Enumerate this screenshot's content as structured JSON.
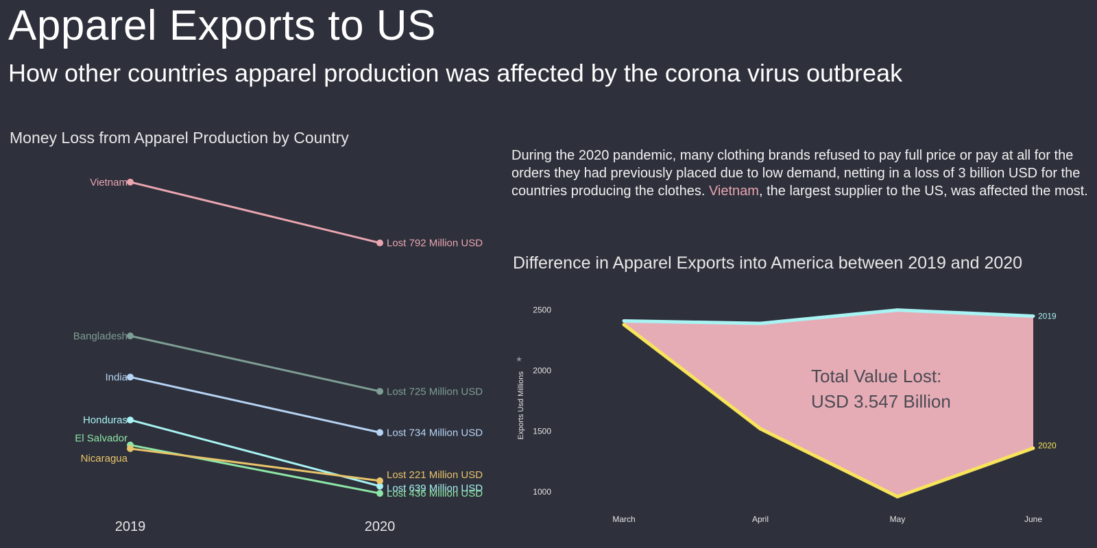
{
  "header": {
    "title": "Apparel Exports to US",
    "subtitle": "How other countries apparel production was affected by the corona virus outbreak"
  },
  "description": {
    "before": "During the 2020 pandemic, many clothing brands refused to pay full price or pay at all for the orders they had previously placed due to low demand, netting in a loss of 3 billion USD for the countries producing the clothes. ",
    "highlight": "Vietnam",
    "after": ", the largest supplier to the US, was affected the most."
  },
  "chart_data": [
    {
      "type": "line",
      "title": "Money Loss from Apparel Production by Country",
      "x": [
        "2019",
        "2020"
      ],
      "series": [
        {
          "name": "Vietnam",
          "values": [
            3.62,
            3.28
          ],
          "end_label": "Lost 792 Million USD",
          "color": "#e9a6b0"
        },
        {
          "name": "Bangladesh",
          "values": [
            2.76,
            2.45
          ],
          "end_label": "Lost 725 Million USD",
          "color": "#7e9e95"
        },
        {
          "name": "India",
          "values": [
            2.53,
            2.22
          ],
          "end_label": "Lost 734 Million USD",
          "color": "#b7d4f5"
        },
        {
          "name": "Honduras",
          "values": [
            2.29,
            1.92
          ],
          "end_label": "Lost 639 Million USD",
          "color": "#a8f3f3"
        },
        {
          "name": "El Salvador",
          "values": [
            2.15,
            1.88
          ],
          "end_label": "Lost 436 Million USD",
          "color": "#8ee6a6"
        },
        {
          "name": "Nicaragua",
          "values": [
            2.13,
            1.95
          ],
          "end_label": "Lost 221 Million USD",
          "color": "#e8c46a"
        }
      ]
    },
    {
      "type": "area",
      "title": "Difference in Apparel Exports into America between 2019 and 2020",
      "categories": [
        "March",
        "April",
        "May",
        "June"
      ],
      "ylabel": "Exports Usd Millions",
      "ylim": [
        870,
        2560
      ],
      "yticks": [
        "1000",
        "1500",
        "2000",
        "2500"
      ],
      "annotation": [
        "Total Value Lost:",
        "USD 3.547 Billion"
      ],
      "fill_color": "#e6acb6",
      "series": [
        {
          "name": "2019",
          "values": [
            2410,
            2390,
            2500,
            2450
          ],
          "color": "#a8f3f3"
        },
        {
          "name": "2020",
          "values": [
            2380,
            1520,
            960,
            1360
          ],
          "color": "#f7e45a"
        }
      ]
    }
  ]
}
